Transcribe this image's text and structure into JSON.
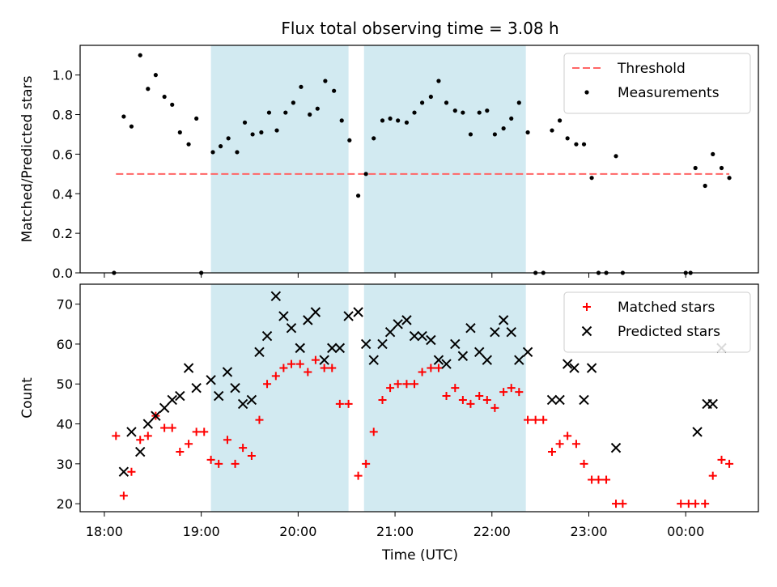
{
  "chart_data": {
    "title": "Flux total observing time = 3.08 h",
    "xlabel": "Time (UTC)",
    "x_unit": "hours UTC (values past 24 are after midnight)",
    "xlim": [
      17.75,
      24.75
    ],
    "x_ticks": [
      {
        "value": 18,
        "label": "18:00"
      },
      {
        "value": 19,
        "label": "19:00"
      },
      {
        "value": 20,
        "label": "20:00"
      },
      {
        "value": 21,
        "label": "21:00"
      },
      {
        "value": 22,
        "label": "22:00"
      },
      {
        "value": 23,
        "label": "23:00"
      },
      {
        "value": 24,
        "label": "00:00"
      }
    ],
    "shaded_intervals": [
      [
        19.1,
        20.52
      ],
      [
        20.68,
        22.35
      ]
    ],
    "shade_color": "#add8e6",
    "panels": [
      {
        "type": "scatter",
        "ylabel": "Matched/Predicted stars",
        "ylim": [
          0,
          1.15
        ],
        "y_ticks": [
          0,
          0.2,
          0.4,
          0.6,
          0.8,
          1.0
        ],
        "y_tick_labels": [
          "0.0",
          "0.2",
          "0.4",
          "0.6",
          "0.8",
          "1.0"
        ],
        "threshold": {
          "name": "Threshold",
          "value": 0.5,
          "x_range": [
            18.12,
            24.45
          ],
          "color": "#ff6666"
        },
        "legend": {
          "position": "upper right",
          "entries": [
            "Threshold",
            "Measurements"
          ]
        },
        "series": [
          {
            "name": "Measurements",
            "marker": "dot",
            "color": "#000000",
            "x": [
              18.1,
              18.2,
              18.28,
              18.37,
              18.45,
              18.53,
              18.62,
              18.7,
              18.78,
              18.87,
              18.95,
              19.0,
              19.12,
              19.2,
              19.28,
              19.37,
              19.45,
              19.53,
              19.62,
              19.7,
              19.78,
              19.87,
              19.95,
              20.03,
              20.12,
              20.2,
              20.28,
              20.37,
              20.45,
              20.53,
              20.62,
              20.7,
              20.78,
              20.87,
              20.95,
              21.03,
              21.12,
              21.2,
              21.28,
              21.37,
              21.45,
              21.53,
              21.62,
              21.7,
              21.78,
              21.87,
              21.95,
              22.03,
              22.12,
              22.2,
              22.28,
              22.37,
              22.45,
              22.53,
              22.62,
              22.7,
              22.78,
              22.87,
              22.95,
              23.03,
              23.1,
              23.18,
              23.28,
              23.35,
              24.0,
              24.05,
              24.1,
              24.2,
              24.28,
              24.37,
              24.45
            ],
            "y": [
              0.0,
              0.79,
              0.74,
              1.1,
              0.93,
              1.0,
              0.89,
              0.85,
              0.71,
              0.65,
              0.78,
              0.0,
              0.61,
              0.64,
              0.68,
              0.61,
              0.76,
              0.7,
              0.71,
              0.81,
              0.72,
              0.81,
              0.86,
              0.94,
              0.8,
              0.83,
              0.97,
              0.92,
              0.77,
              0.67,
              0.39,
              0.5,
              0.68,
              0.77,
              0.78,
              0.77,
              0.76,
              0.81,
              0.86,
              0.89,
              0.97,
              0.86,
              0.82,
              0.81,
              0.7,
              0.81,
              0.82,
              0.7,
              0.73,
              0.78,
              0.86,
              0.71,
              0.0,
              0.0,
              0.72,
              0.77,
              0.68,
              0.65,
              0.65,
              0.48,
              0.0,
              0.0,
              0.59,
              0.0,
              0.0,
              0.0,
              0.53,
              0.44,
              0.6,
              0.53,
              0.48
            ]
          }
        ]
      },
      {
        "type": "scatter",
        "ylabel": "Count",
        "ylim": [
          18,
          75
        ],
        "y_ticks": [
          20,
          30,
          40,
          50,
          60,
          70
        ],
        "y_tick_labels": [
          "20",
          "30",
          "40",
          "50",
          "60",
          "70"
        ],
        "legend": {
          "position": "upper right",
          "entries": [
            "Matched stars",
            "Predicted stars"
          ]
        },
        "series": [
          {
            "name": "Matched stars",
            "marker": "plus",
            "color": "#ff0000",
            "x": [
              18.12,
              18.2,
              18.28,
              18.37,
              18.45,
              18.53,
              18.62,
              18.7,
              18.78,
              18.87,
              18.95,
              19.03,
              19.1,
              19.18,
              19.27,
              19.35,
              19.43,
              19.52,
              19.6,
              19.68,
              19.77,
              19.85,
              19.93,
              20.02,
              20.1,
              20.18,
              20.27,
              20.35,
              20.43,
              20.52,
              20.62,
              20.7,
              20.78,
              20.87,
              20.95,
              21.03,
              21.12,
              21.2,
              21.28,
              21.37,
              21.45,
              21.53,
              21.62,
              21.7,
              21.78,
              21.87,
              21.95,
              22.03,
              22.12,
              22.2,
              22.28,
              22.37,
              22.45,
              22.53,
              22.62,
              22.7,
              22.78,
              22.87,
              22.95,
              23.03,
              23.1,
              23.18,
              23.28,
              23.35,
              23.95,
              24.03,
              24.1,
              24.2,
              24.28,
              24.37,
              24.45
            ],
            "y": [
              37,
              22,
              28,
              36,
              37,
              42,
              39,
              39,
              33,
              35,
              38,
              38,
              31,
              30,
              36,
              30,
              34,
              32,
              41,
              50,
              52,
              54,
              55,
              55,
              53,
              56,
              54,
              54,
              45,
              45,
              27,
              30,
              38,
              46,
              49,
              50,
              50,
              50,
              53,
              54,
              54,
              47,
              49,
              46,
              45,
              47,
              46,
              44,
              48,
              49,
              48,
              41,
              41,
              41,
              33,
              35,
              37,
              35,
              30,
              26,
              26,
              26,
              20,
              20,
              20,
              20,
              20,
              20,
              27,
              31,
              30
            ]
          },
          {
            "name": "Predicted stars",
            "marker": "x",
            "color": "#000000",
            "x": [
              18.2,
              18.28,
              18.37,
              18.45,
              18.53,
              18.62,
              18.7,
              18.78,
              18.87,
              18.95,
              19.1,
              19.18,
              19.27,
              19.35,
              19.43,
              19.52,
              19.6,
              19.68,
              19.77,
              19.85,
              19.93,
              20.02,
              20.1,
              20.18,
              20.27,
              20.35,
              20.43,
              20.52,
              20.62,
              20.7,
              20.78,
              20.87,
              20.95,
              21.03,
              21.12,
              21.2,
              21.28,
              21.37,
              21.45,
              21.53,
              21.62,
              21.7,
              21.78,
              21.87,
              21.95,
              22.03,
              22.12,
              22.2,
              22.28,
              22.37,
              22.62,
              22.7,
              22.78,
              22.85,
              22.95,
              23.03,
              23.28,
              24.12,
              24.22,
              24.28,
              24.37
            ],
            "y": [
              28,
              38,
              33,
              40,
              42,
              44,
              46,
              47,
              54,
              49,
              51,
              47,
              53,
              49,
              45,
              46,
              58,
              62,
              72,
              67,
              64,
              59,
              66,
              68,
              56,
              59,
              59,
              67,
              68,
              60,
              56,
              60,
              63,
              65,
              66,
              62,
              62,
              61,
              56,
              55,
              60,
              57,
              64,
              58,
              56,
              63,
              66,
              63,
              56,
              58,
              46,
              46,
              55,
              54,
              46,
              54,
              34,
              38,
              45,
              45,
              59
            ]
          }
        ]
      }
    ]
  }
}
